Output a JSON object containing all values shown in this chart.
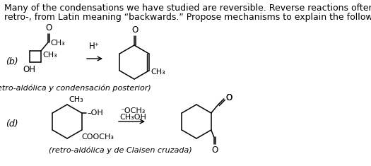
{
  "background_color": "#ffffff",
  "text_color": "#000000",
  "header_line1": "Many of the condensations we have studied are reversible. Reverse reactions often give the prefix",
  "header_line2": "retro-, from Latin meaning “backwards.” Propose mechanisms to explain the following reactions.",
  "header_fontsize": 9.0,
  "label_b": "(b)",
  "label_d": "(d)",
  "caption_b": "(retro-aldólica y condensación posterior)",
  "caption_d": "(retro-aldólica y de Claisen cruzada)"
}
